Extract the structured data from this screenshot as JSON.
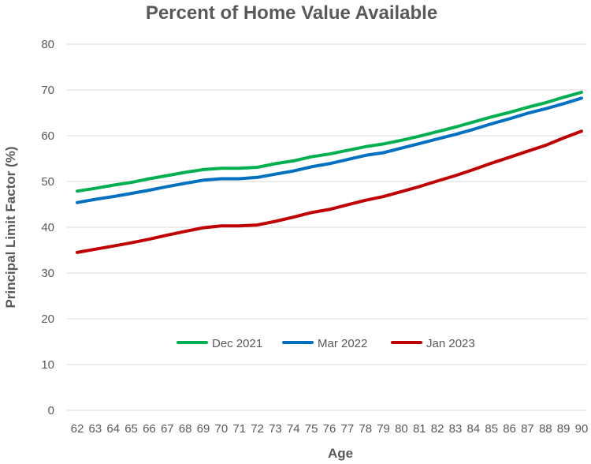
{
  "chart_data": {
    "type": "line",
    "title": "Percent of Home Value Available",
    "xlabel": "Age",
    "ylabel": "Principal  Limit  Factor (%)",
    "ylim": [
      0,
      80
    ],
    "yticks": [
      0,
      10,
      20,
      30,
      40,
      50,
      60,
      70,
      80
    ],
    "grid": true,
    "legend_position": "inside-lower-center",
    "categories": [
      "62",
      "63",
      "64",
      "65",
      "66",
      "67",
      "68",
      "69",
      "70",
      "71",
      "72",
      "73",
      "74",
      "75",
      "76",
      "77",
      "78",
      "79",
      "80",
      "81",
      "82",
      "83",
      "84",
      "85",
      "86",
      "87",
      "88",
      "89",
      "90"
    ],
    "series": [
      {
        "name": "Dec 2021",
        "color": "#00b050",
        "values": [
          47.9,
          48.5,
          49.2,
          49.8,
          50.6,
          51.3,
          52.0,
          52.6,
          52.9,
          52.9,
          53.1,
          53.9,
          54.5,
          55.4,
          56.0,
          56.8,
          57.6,
          58.2,
          59.0,
          59.9,
          60.9,
          61.9,
          63.0,
          64.1,
          65.1,
          66.2,
          67.2,
          68.4,
          69.5
        ]
      },
      {
        "name": "Mar 2022",
        "color": "#0070c0",
        "values": [
          45.4,
          46.1,
          46.7,
          47.4,
          48.1,
          48.9,
          49.6,
          50.3,
          50.6,
          50.6,
          50.9,
          51.6,
          52.3,
          53.2,
          53.9,
          54.8,
          55.7,
          56.3,
          57.3,
          58.3,
          59.3,
          60.3,
          61.4,
          62.6,
          63.7,
          64.9,
          65.9,
          67.0,
          68.2
        ]
      },
      {
        "name": "Jan 2023",
        "color": "#c00000",
        "values": [
          34.5,
          35.2,
          35.9,
          36.6,
          37.4,
          38.3,
          39.1,
          39.9,
          40.3,
          40.3,
          40.5,
          41.3,
          42.2,
          43.2,
          43.9,
          44.9,
          45.9,
          46.7,
          47.8,
          48.9,
          50.1,
          51.3,
          52.6,
          54.0,
          55.3,
          56.6,
          57.9,
          59.5,
          61.0
        ]
      }
    ]
  }
}
